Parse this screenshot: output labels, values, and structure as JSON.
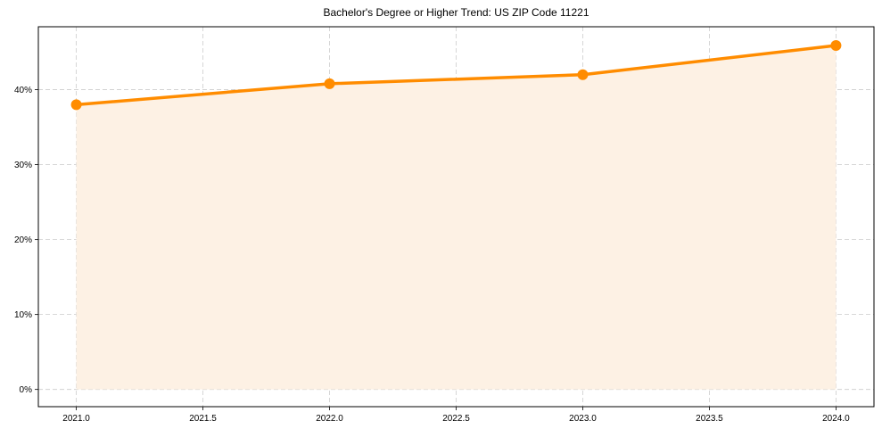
{
  "chart_data": {
    "type": "line",
    "title": "Bachelor's Degree or Higher Trend: US ZIP Code 11221",
    "xlabel": "",
    "ylabel": "",
    "x": [
      2021,
      2022,
      2023,
      2024
    ],
    "series": [
      {
        "name": "Bachelor's Degree or Higher",
        "values": [
          38.0,
          40.8,
          42.0,
          45.9
        ],
        "unit": "%"
      }
    ],
    "xticks": [
      "2021.0",
      "2021.5",
      "2022.0",
      "2022.5",
      "2023.0",
      "2023.5",
      "2024.0"
    ],
    "yticks": [
      "0%",
      "10%",
      "20%",
      "30%",
      "40%"
    ],
    "xlim": [
      2020.85,
      2024.15
    ],
    "ylim": [
      -2.3,
      48.4
    ],
    "grid": true,
    "area_fill": true,
    "legend": null
  },
  "style": {
    "line_color": "#FF8C00",
    "fill_color": "#FDF1E4",
    "grid_color": "#CCCCCC"
  }
}
